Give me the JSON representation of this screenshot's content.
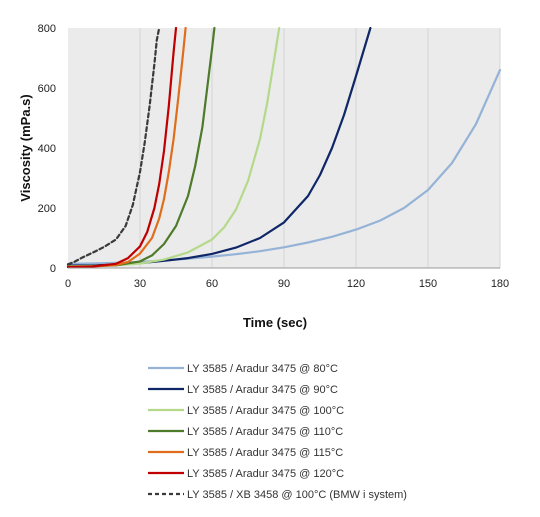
{
  "chart_data": {
    "type": "line",
    "title": "",
    "xlabel": "Time (sec)",
    "ylabel": "Viscosity (mPa.s)",
    "xlim": [
      0,
      180
    ],
    "ylim": [
      0,
      800
    ],
    "xticks": [
      0,
      30,
      60,
      90,
      120,
      150,
      180
    ],
    "yticks": [
      0,
      200,
      400,
      600,
      800
    ],
    "grid": "vertical",
    "background": "#ebebeb",
    "legend_position": "bottom",
    "series": [
      {
        "name": "LY 3585 / Aradur 3475  @ 80°C",
        "color": "#95b3d7",
        "dash": "solid",
        "x": [
          0,
          10,
          20,
          30,
          40,
          50,
          60,
          70,
          80,
          90,
          100,
          110,
          120,
          130,
          140,
          150,
          160,
          170,
          180
        ],
        "y": [
          14,
          15,
          17,
          20,
          25,
          31,
          38,
          46,
          56,
          69,
          85,
          104,
          128,
          158,
          200,
          260,
          350,
          480,
          660
        ]
      },
      {
        "name": "LY 3585 / Aradur 3475  @ 90°C",
        "color": "#0f2767",
        "dash": "solid",
        "x": [
          0,
          10,
          20,
          30,
          40,
          50,
          60,
          70,
          80,
          90,
          100,
          105,
          110,
          115,
          120,
          123,
          126
        ],
        "y": [
          8,
          9,
          11,
          16,
          24,
          33,
          47,
          68,
          100,
          152,
          240,
          310,
          400,
          510,
          640,
          720,
          800
        ]
      },
      {
        "name": "LY 3585 / Aradur 3475  @ 100°C",
        "color": "#b5d98a",
        "dash": "solid",
        "x": [
          0,
          10,
          20,
          30,
          40,
          50,
          60,
          65,
          70,
          75,
          80,
          83,
          86,
          88
        ],
        "y": [
          6,
          7,
          9,
          15,
          28,
          52,
          95,
          135,
          195,
          290,
          430,
          550,
          700,
          800
        ]
      },
      {
        "name": "LY 3585 / Aradur 3475  @ 110°C",
        "color": "#4e7a2b",
        "dash": "solid",
        "x": [
          0,
          10,
          20,
          30,
          35,
          40,
          45,
          50,
          53,
          56,
          58,
          60,
          61
        ],
        "y": [
          5,
          6,
          9,
          22,
          42,
          80,
          140,
          240,
          340,
          470,
          600,
          730,
          800
        ]
      },
      {
        "name": "LY 3585 / Aradur 3475  @ 115°C",
        "color": "#e06d1b",
        "dash": "solid",
        "x": [
          0,
          10,
          20,
          25,
          30,
          35,
          38,
          40,
          42,
          44,
          46,
          48,
          49
        ],
        "y": [
          4,
          5,
          10,
          20,
          48,
          100,
          165,
          230,
          320,
          430,
          570,
          720,
          800
        ]
      },
      {
        "name": "LY 3585 / Aradur 3475  @ 120°C",
        "color": "#c00000",
        "dash": "solid",
        "x": [
          0,
          10,
          20,
          25,
          30,
          33,
          36,
          38,
          40,
          42,
          43,
          44,
          45
        ],
        "y": [
          3,
          5,
          14,
          33,
          72,
          120,
          200,
          280,
          390,
          540,
          630,
          720,
          800
        ]
      },
      {
        "name": "LY 3585 / XB 3458 @ 100°C (BMW i system)",
        "color": "#3a3a3a",
        "dash": "dashed",
        "x": [
          0,
          3,
          6,
          10,
          15,
          20,
          24,
          27,
          30,
          32,
          34,
          36,
          37,
          38
        ],
        "y": [
          12,
          22,
          35,
          50,
          70,
          95,
          140,
          210,
          320,
          420,
          540,
          680,
          760,
          800
        ]
      }
    ]
  }
}
